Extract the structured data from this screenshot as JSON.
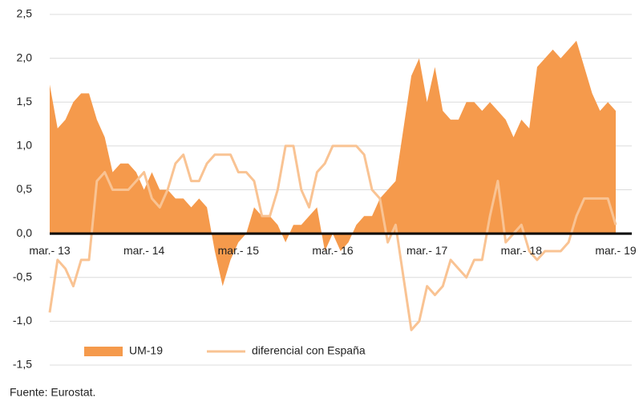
{
  "chart_data": {
    "type": "area_line",
    "source": "Fuente: Eurostat.",
    "categories": [
      "mar.- 13",
      null,
      null,
      null,
      null,
      null,
      null,
      null,
      null,
      null,
      null,
      null,
      "mar.- 14",
      null,
      null,
      null,
      null,
      null,
      null,
      null,
      null,
      null,
      null,
      null,
      "mar.- 15",
      null,
      null,
      null,
      null,
      null,
      null,
      null,
      null,
      null,
      null,
      null,
      "mar.- 16",
      null,
      null,
      null,
      null,
      null,
      null,
      null,
      null,
      null,
      null,
      null,
      "mar.- 17",
      null,
      null,
      null,
      null,
      null,
      null,
      null,
      null,
      null,
      null,
      null,
      "mar.- 18",
      null,
      null,
      null,
      null,
      null,
      null,
      null,
      null,
      null,
      null,
      null,
      "mar.- 19"
    ],
    "series": [
      {
        "name": "UM-19",
        "kind": "area",
        "color": "#f59a4c",
        "values": [
          1.7,
          1.2,
          1.3,
          1.5,
          1.6,
          1.6,
          1.3,
          1.1,
          0.7,
          0.8,
          0.8,
          0.7,
          0.5,
          0.7,
          0.5,
          0.5,
          0.4,
          0.4,
          0.3,
          0.4,
          0.3,
          -0.2,
          -0.6,
          -0.3,
          -0.1,
          0.0,
          0.3,
          0.2,
          0.2,
          0.1,
          -0.1,
          0.1,
          0.1,
          0.2,
          0.3,
          -0.2,
          0.0,
          -0.2,
          -0.1,
          0.1,
          0.2,
          0.2,
          0.4,
          0.5,
          0.6,
          1.2,
          1.8,
          2.0,
          1.5,
          1.9,
          1.4,
          1.3,
          1.3,
          1.5,
          1.5,
          1.4,
          1.5,
          1.4,
          1.3,
          1.1,
          1.3,
          1.2,
          1.9,
          2.0,
          2.1,
          2.0,
          2.1,
          2.2,
          1.9,
          1.6,
          1.4,
          1.5,
          1.4
        ]
      },
      {
        "name": "diferencial con España",
        "kind": "line",
        "color": "#f9c393",
        "values": [
          -0.9,
          -0.3,
          -0.4,
          -0.6,
          -0.3,
          -0.3,
          0.6,
          0.7,
          0.5,
          0.5,
          0.5,
          0.6,
          0.7,
          0.4,
          0.3,
          0.5,
          0.8,
          0.9,
          0.6,
          0.6,
          0.8,
          0.9,
          0.9,
          0.9,
          0.7,
          0.7,
          0.6,
          0.2,
          0.2,
          0.5,
          1.0,
          1.0,
          0.5,
          0.3,
          0.7,
          0.8,
          1.0,
          1.0,
          1.0,
          1.0,
          0.9,
          0.5,
          0.4,
          -0.1,
          0.1,
          -0.5,
          -1.1,
          -1.0,
          -0.6,
          -0.7,
          -0.6,
          -0.3,
          -0.4,
          -0.5,
          -0.3,
          -0.3,
          0.2,
          0.6,
          -0.1,
          0,
          0.1,
          -0.2,
          -0.3,
          -0.2,
          -0.2,
          -0.2,
          -0.1,
          0.2,
          0.4,
          0.4,
          0.4,
          0.4,
          0.1
        ]
      }
    ],
    "ylim": [
      -1.5,
      2.5
    ],
    "yticks": [
      {
        "value": -1.5,
        "label": "-1,5"
      },
      {
        "value": -1,
        "label": "-1,0"
      },
      {
        "value": -0.5,
        "label": "-0,5"
      },
      {
        "value": 0,
        "label": "0,0"
      },
      {
        "value": 0.5,
        "label": "0,5"
      },
      {
        "value": 1,
        "label": "1,0"
      },
      {
        "value": 1.5,
        "label": "1,5"
      },
      {
        "value": 2,
        "label": "2,0"
      },
      {
        "value": 2.5,
        "label": "2,5"
      }
    ],
    "grid": true
  }
}
